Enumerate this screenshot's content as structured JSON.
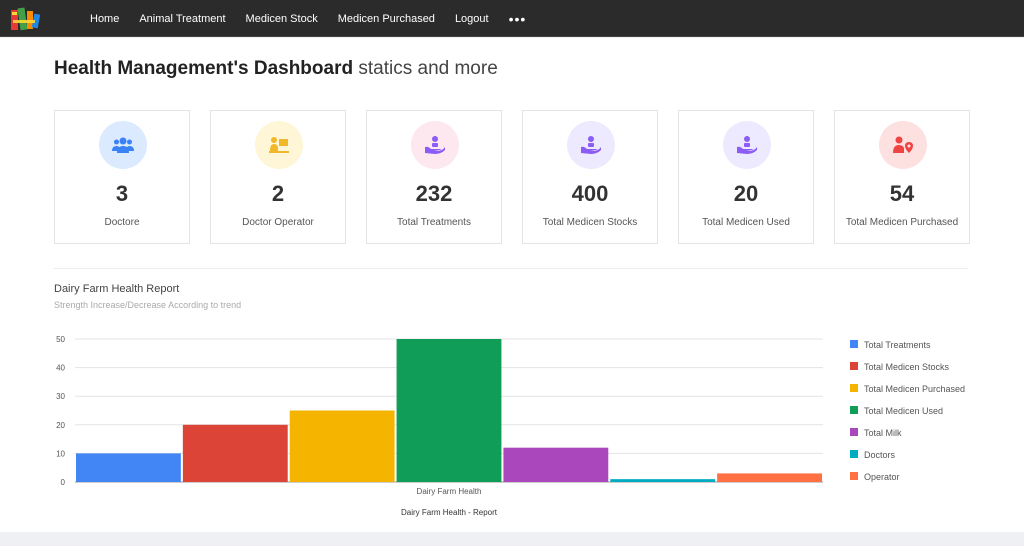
{
  "nav": {
    "items": [
      "Home",
      "Animal Treatment",
      "Medicen Stock",
      "Medicen Purchased",
      "Logout"
    ],
    "more": "•••"
  },
  "header": {
    "title_bold": "Health Management's Dashboard",
    "title_light": "statics and more"
  },
  "cards": [
    {
      "value": "3",
      "label": "Doctore",
      "icon": "users-icon",
      "bg": "#dbeafe",
      "color": "#3b82f6"
    },
    {
      "value": "2",
      "label": "Doctor Operator",
      "icon": "operator-desk-icon",
      "bg": "#fef6d6",
      "color": "#f0b82a"
    },
    {
      "value": "232",
      "label": "Total Treatments",
      "icon": "hand-care-icon",
      "bg": "#fde8f0",
      "color": "#8b5cf6"
    },
    {
      "value": "400",
      "label": "Total Medicen Stocks",
      "icon": "hand-care-icon",
      "bg": "#ede9fe",
      "color": "#8b5cf6"
    },
    {
      "value": "20",
      "label": "Total Medicen Used",
      "icon": "hand-care-icon",
      "bg": "#ede9fe",
      "color": "#8b5cf6"
    },
    {
      "value": "54",
      "label": "Total Medicen Purchased",
      "icon": "user-location-icon",
      "bg": "#fde0e0",
      "color": "#ef4444"
    }
  ],
  "chart_section": {
    "title": "Dairy Farm Health Report",
    "subtitle": "Strength Increase/Decrease According to trend"
  },
  "chart_data": {
    "type": "bar",
    "categories": [
      "Dairy Farm Health"
    ],
    "series": [
      {
        "name": "Total Treatments",
        "values": [
          10
        ],
        "color": "#4285f4"
      },
      {
        "name": "Total Medicen Stocks",
        "values": [
          20
        ],
        "color": "#db4437"
      },
      {
        "name": "Total Medicen Purchased",
        "values": [
          25
        ],
        "color": "#f4b400"
      },
      {
        "name": "Total Medicen Used",
        "values": [
          50
        ],
        "color": "#0f9d58"
      },
      {
        "name": "Total Milk",
        "values": [
          12
        ],
        "color": "#ab47bc"
      },
      {
        "name": "Doctors",
        "values": [
          1
        ],
        "color": "#00acc1"
      },
      {
        "name": "Operator",
        "values": [
          3
        ],
        "color": "#ff7043"
      }
    ],
    "title": "",
    "xlabel": "Dairy Farm Health - Report",
    "ylabel": "",
    "ylim": [
      0,
      50
    ],
    "yticks": [
      "0",
      "10",
      "20",
      "30",
      "40",
      "50"
    ],
    "grid": true,
    "legend": "right"
  }
}
